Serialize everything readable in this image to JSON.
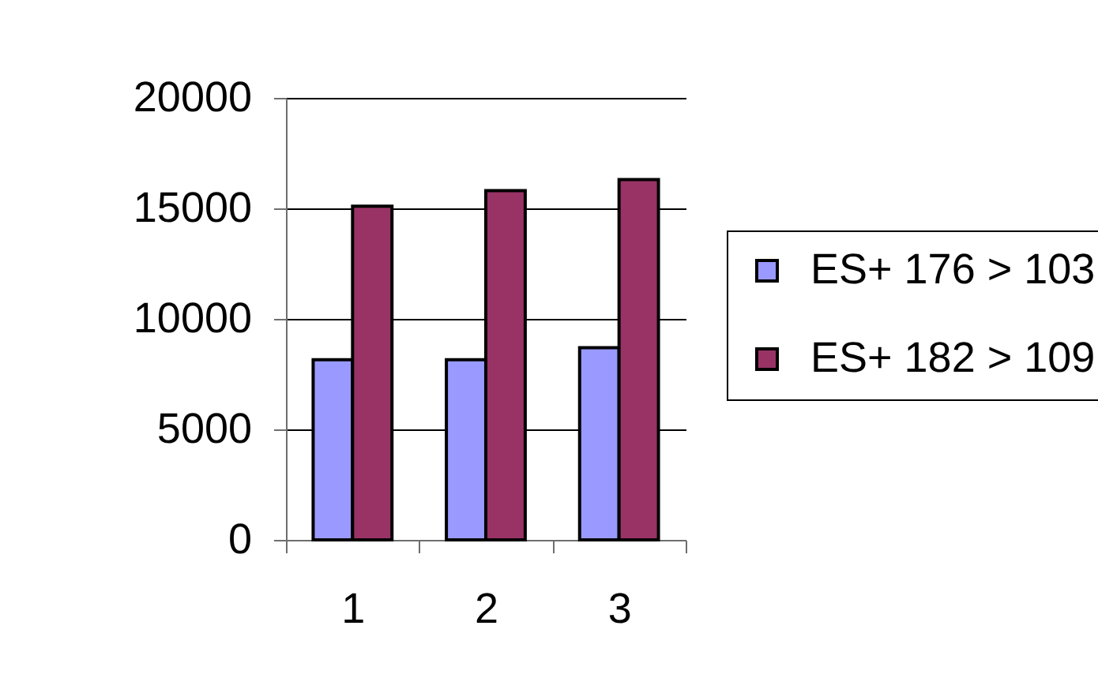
{
  "chart_data": {
    "type": "bar",
    "categories": [
      "1",
      "2",
      "3"
    ],
    "series": [
      {
        "name": "ES+ 176 > 103",
        "color": "#9999ff",
        "values": [
          8150,
          8150,
          8700
        ]
      },
      {
        "name": "ES+ 182 > 109",
        "color": "#993366",
        "values": [
          15100,
          15800,
          16300
        ]
      }
    ],
    "ylim": [
      0,
      20000
    ],
    "yticks": [
      0,
      5000,
      10000,
      15000,
      20000
    ],
    "grid": "y",
    "legend": "right"
  }
}
